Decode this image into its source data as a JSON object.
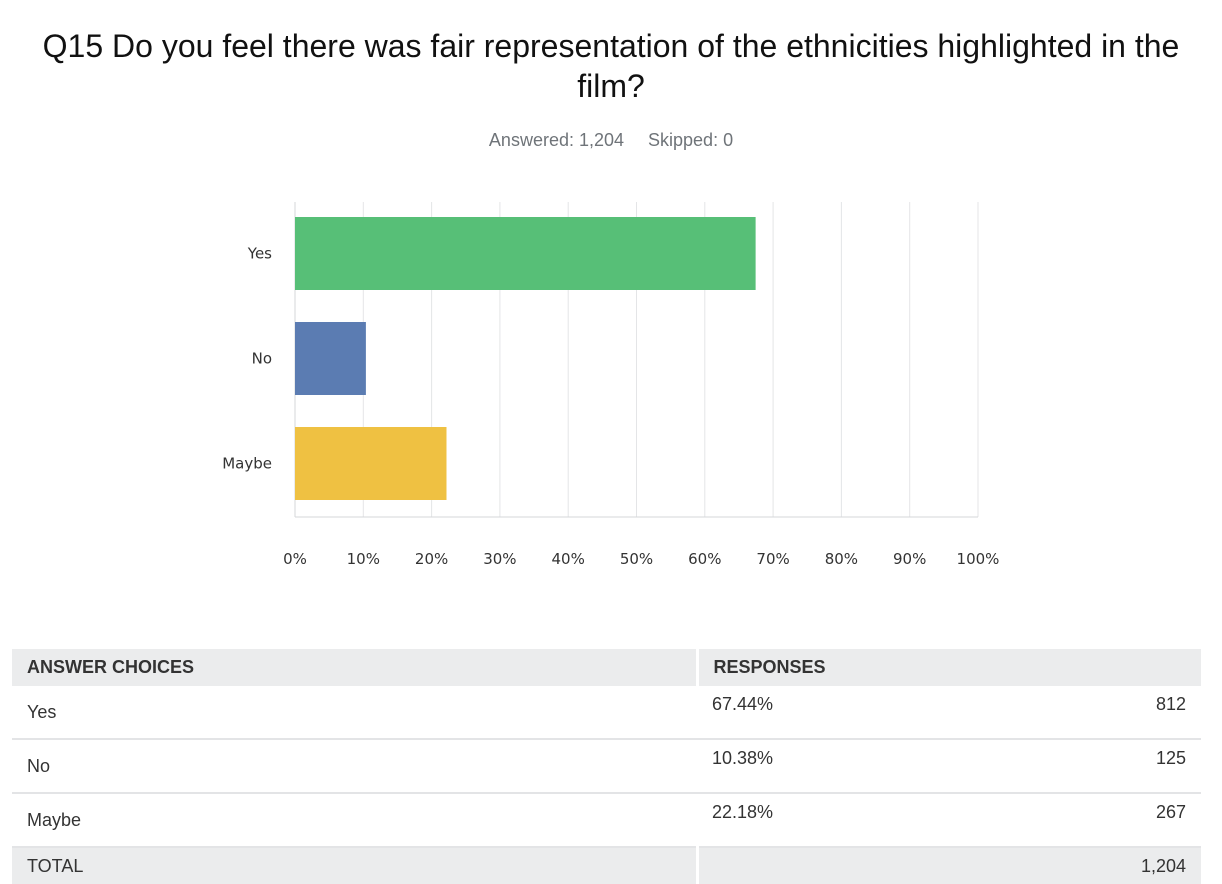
{
  "question": "Q15 Do you feel there was fair representation of the ethnicities highlighted in the film?",
  "summary": {
    "answered": "Answered: 1,204",
    "skipped": "Skipped: 0"
  },
  "chart_data": {
    "type": "bar",
    "orientation": "horizontal",
    "categories": [
      "Yes",
      "No",
      "Maybe"
    ],
    "values": [
      67.44,
      10.38,
      22.18
    ],
    "colors": [
      "#57bf77",
      "#5b7cb2",
      "#efc142"
    ],
    "xlim": [
      0,
      100
    ],
    "xticks": [
      "0%",
      "10%",
      "20%",
      "30%",
      "40%",
      "50%",
      "60%",
      "70%",
      "80%",
      "90%",
      "100%"
    ],
    "grid": true
  },
  "table": {
    "headers": [
      "ANSWER CHOICES",
      "RESPONSES"
    ],
    "rows": [
      {
        "choice": "Yes",
        "percent": "67.44%",
        "count": "812"
      },
      {
        "choice": "No",
        "percent": "10.38%",
        "count": "125"
      },
      {
        "choice": "Maybe",
        "percent": "22.18%",
        "count": "267"
      }
    ],
    "total_label": "TOTAL",
    "total_count": "1,204"
  }
}
